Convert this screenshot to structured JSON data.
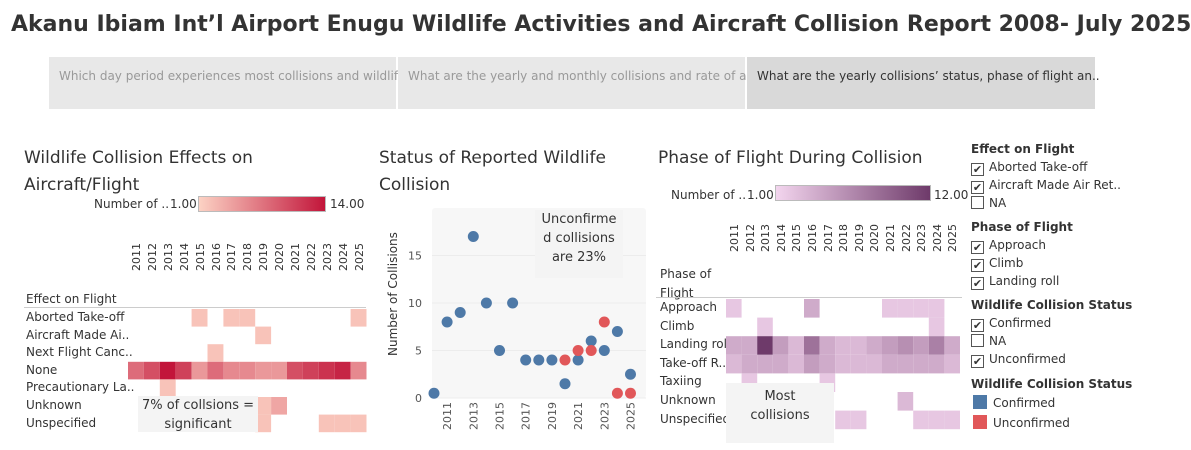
{
  "title": "Akanu Ibiam Int’l Airport Enugu Wildlife Activities and Aircraft Collision Report 2008- July 2025",
  "tabs": [
    "Which day period experiences most collisions and wildlif..",
    "What are the yearly and monthly collisions  and rate of a..",
    "What are the yearly collisions’ status, phase of flight an.."
  ],
  "effects": {
    "title_line1": "Wildlife Collision Effects on",
    "title_line2": "Aircraft/Flight",
    "legend_label": "Number of ..",
    "legend_min": "1.00",
    "legend_max": "14.00",
    "row_header": "Effect on Flight",
    "annotation_line1": "7% of collsions =",
    "annotation_line2": "significant",
    "colors": {
      "low": "#fcd2c4",
      "high": "#c2153a"
    }
  },
  "status": {
    "title_line1": "Status of Reported Wildlife",
    "title_line2": "Collision",
    "ylabel": "Number of Collisions",
    "annotation_line1": "Unconfirme",
    "annotation_line2": "d collisions",
    "annotation_line3": "are 23%",
    "colors": {
      "Confirmed": "#4e79a7",
      "Unconfirmed": "#e15759"
    }
  },
  "phase": {
    "title": "Phase of Flight During Collision",
    "legend_label": "Number of ..",
    "legend_min": "1.00",
    "legend_max": "12.00",
    "row_header_line1": "Phase of",
    "row_header_line2": "Flight",
    "annotation_line1": "Most",
    "annotation_line2": "collisions",
    "colors": {
      "low": "#f3d5ee",
      "high": "#6e3a6a"
    }
  },
  "filters": {
    "effect_title": "Effect on Flight",
    "effect_items": [
      "Aborted Take-off",
      "Aircraft Made Air Ret..",
      "NA"
    ],
    "phase_title": "Phase of Flight",
    "phase_items": [
      "Approach",
      "Climb",
      "Landing roll"
    ],
    "status_title": "Wildlife Collision Status",
    "status_items": [
      {
        "label": "Confirmed",
        "checked": true
      },
      {
        "label": "NA",
        "checked": false
      },
      {
        "label": "Unconfirmed",
        "checked": true
      }
    ],
    "legend_title": "Wildlife Collision Status",
    "legend_items": [
      {
        "label": "Confirmed",
        "color": "#4e79a7"
      },
      {
        "label": "Unconfirmed",
        "color": "#e15759"
      }
    ]
  },
  "chart_data": [
    {
      "type": "heatmap",
      "title": "Wildlife Collision Effects on Aircraft/Flight",
      "x": [
        "2011",
        "2012",
        "2013",
        "2014",
        "2015",
        "2016",
        "2017",
        "2018",
        "2019",
        "2020",
        "2021",
        "2022",
        "2023",
        "2024",
        "2025"
      ],
      "y": [
        "Aborted Take-off",
        "Aircraft Made Ai..",
        "Next Flight Canc..",
        "None",
        "Precautionary La..",
        "Unknown",
        "Unspecified"
      ],
      "color_range": [
        1,
        14
      ],
      "values": [
        [
          null,
          null,
          null,
          null,
          2,
          null,
          2,
          2,
          null,
          null,
          null,
          null,
          null,
          null,
          2
        ],
        [
          null,
          null,
          null,
          null,
          null,
          null,
          null,
          null,
          2,
          null,
          null,
          null,
          null,
          null,
          null
        ],
        [
          null,
          null,
          null,
          null,
          null,
          2,
          null,
          null,
          null,
          null,
          null,
          null,
          null,
          null,
          null
        ],
        [
          8,
          10,
          14,
          11,
          5,
          8,
          6,
          6,
          5,
          5,
          10,
          11,
          12,
          13,
          6
        ],
        [
          null,
          null,
          2,
          null,
          null,
          null,
          null,
          null,
          null,
          null,
          null,
          null,
          null,
          null,
          null
        ],
        [
          null,
          null,
          null,
          null,
          null,
          null,
          null,
          null,
          2,
          4,
          null,
          null,
          null,
          null,
          null
        ],
        [
          null,
          null,
          null,
          null,
          null,
          null,
          null,
          null,
          2,
          null,
          null,
          null,
          2,
          2,
          2
        ]
      ]
    },
    {
      "type": "scatter",
      "title": "Status of Reported Wildlife Collision",
      "ylabel": "Number of Collisions",
      "ylim": [
        0,
        20
      ],
      "x_ticks": [
        "2011",
        "2013",
        "2015",
        "2017",
        "2019",
        "2021",
        "2023",
        "2025"
      ],
      "series": [
        {
          "name": "Confirmed",
          "points": [
            [
              2010,
              0.5
            ],
            [
              2011,
              8
            ],
            [
              2012,
              9
            ],
            [
              2013,
              17
            ],
            [
              2014,
              10
            ],
            [
              2015,
              5
            ],
            [
              2016,
              10
            ],
            [
              2017,
              4
            ],
            [
              2018,
              4
            ],
            [
              2019,
              4
            ],
            [
              2020,
              1.5
            ],
            [
              2021,
              4
            ],
            [
              2022,
              6
            ],
            [
              2023,
              5
            ],
            [
              2024,
              7
            ],
            [
              2025,
              2.5
            ]
          ]
        },
        {
          "name": "Unconfirmed",
          "points": [
            [
              2020,
              4
            ],
            [
              2021,
              5
            ],
            [
              2022,
              5
            ],
            [
              2023,
              8
            ],
            [
              2024,
              0.5
            ],
            [
              2025,
              0.5
            ]
          ]
        }
      ]
    },
    {
      "type": "heatmap",
      "title": "Phase of Flight During Collision",
      "x": [
        "2011",
        "2012",
        "2013",
        "2014",
        "2015",
        "2016",
        "2017",
        "2018",
        "2019",
        "2020",
        "2021",
        "2022",
        "2023",
        "2024",
        "2025"
      ],
      "y": [
        "Approach",
        "Climb",
        "Landing roll",
        "Take-off R..",
        "Taxiing",
        "Unknown",
        "Unspecified"
      ],
      "color_range": [
        1,
        12
      ],
      "values": [
        [
          2,
          null,
          null,
          null,
          null,
          4,
          null,
          null,
          null,
          null,
          2,
          2,
          2,
          2,
          null
        ],
        [
          null,
          null,
          2,
          null,
          null,
          null,
          null,
          null,
          null,
          null,
          null,
          null,
          null,
          2,
          null
        ],
        [
          4,
          4,
          12,
          5,
          3,
          8,
          4,
          3,
          3,
          4,
          5,
          6,
          5,
          7,
          4
        ],
        [
          3,
          4,
          4,
          4,
          3,
          5,
          4,
          3,
          3,
          3,
          4,
          4,
          4,
          4,
          3
        ],
        [
          null,
          2,
          null,
          null,
          null,
          null,
          2,
          null,
          null,
          null,
          null,
          null,
          null,
          null,
          null
        ],
        [
          null,
          null,
          null,
          null,
          null,
          null,
          null,
          null,
          null,
          null,
          null,
          3,
          null,
          null,
          null
        ],
        [
          null,
          null,
          null,
          null,
          null,
          null,
          null,
          2,
          2,
          null,
          null,
          null,
          2,
          2,
          2
        ]
      ]
    }
  ]
}
